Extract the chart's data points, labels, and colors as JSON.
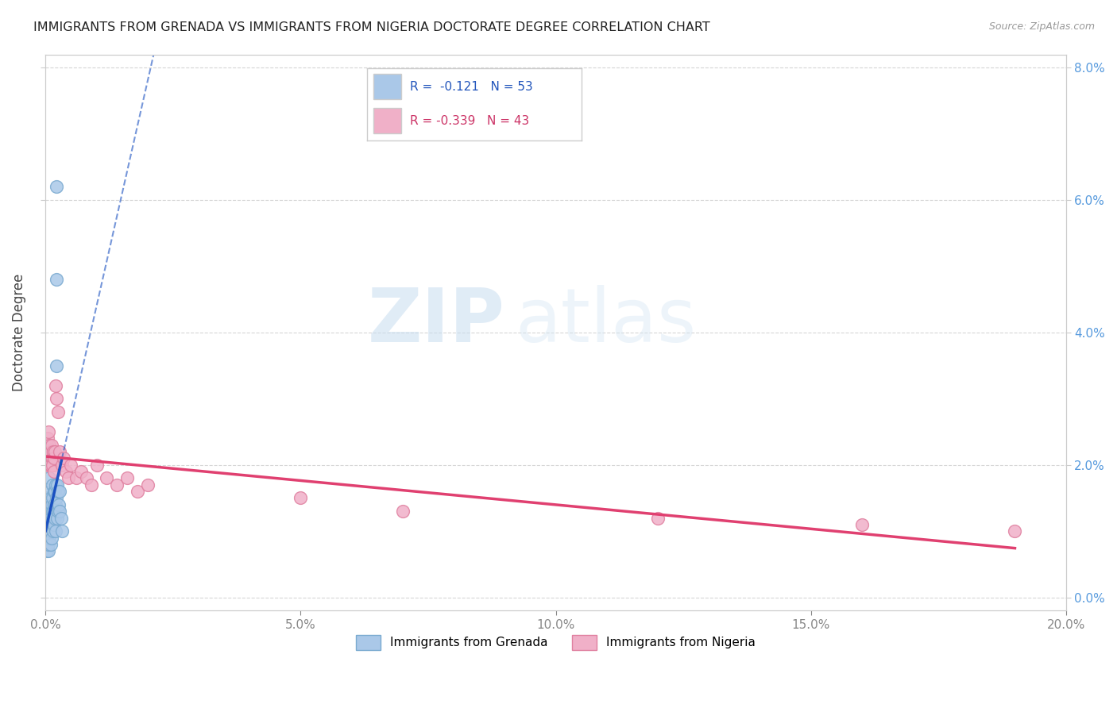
{
  "title": "IMMIGRANTS FROM GRENADA VS IMMIGRANTS FROM NIGERIA DOCTORATE DEGREE CORRELATION CHART",
  "source": "Source: ZipAtlas.com",
  "ylabel": "Doctorate Degree",
  "xlim": [
    0.0,
    0.2
  ],
  "ylim": [
    -0.002,
    0.082
  ],
  "xticks": [
    0.0,
    0.05,
    0.1,
    0.15,
    0.2
  ],
  "yticks": [
    0.0,
    0.02,
    0.04,
    0.06,
    0.08
  ],
  "xticklabels": [
    "0.0%",
    "5.0%",
    "10.0%",
    "15.0%",
    "20.0%"
  ],
  "yticklabels_right": [
    "0.0%",
    "2.0%",
    "4.0%",
    "6.0%",
    "8.0%"
  ],
  "series1_color": "#aac8e8",
  "series1_edge": "#7aaad0",
  "series2_color": "#f0b0c8",
  "series2_edge": "#e080a0",
  "trendline1_color": "#1a50c0",
  "trendline2_color": "#e04070",
  "legend_label1": "Immigrants from Grenada",
  "legend_label2": "Immigrants from Nigeria",
  "R1": -0.121,
  "N1": 53,
  "R2": -0.339,
  "N2": 43,
  "background_color": "#ffffff",
  "grenada_x": [
    0.0,
    0.0001,
    0.0001,
    0.0002,
    0.0002,
    0.0003,
    0.0003,
    0.0004,
    0.0004,
    0.0005,
    0.0005,
    0.0006,
    0.0006,
    0.0007,
    0.0007,
    0.0008,
    0.0008,
    0.0009,
    0.0009,
    0.001,
    0.001,
    0.0011,
    0.0011,
    0.0012,
    0.0012,
    0.0013,
    0.0013,
    0.0014,
    0.0014,
    0.0015,
    0.0015,
    0.0016,
    0.0016,
    0.0017,
    0.0017,
    0.0018,
    0.0018,
    0.0019,
    0.002,
    0.002,
    0.0021,
    0.0021,
    0.0022,
    0.0022,
    0.0023,
    0.0023,
    0.0025,
    0.0025,
    0.0026,
    0.0028,
    0.0028,
    0.003,
    0.0032
  ],
  "grenada_y": [
    0.01,
    0.008,
    0.014,
    0.007,
    0.012,
    0.009,
    0.015,
    0.008,
    0.013,
    0.007,
    0.012,
    0.015,
    0.008,
    0.013,
    0.009,
    0.018,
    0.013,
    0.01,
    0.016,
    0.012,
    0.008,
    0.015,
    0.011,
    0.014,
    0.009,
    0.013,
    0.017,
    0.012,
    0.015,
    0.01,
    0.013,
    0.016,
    0.02,
    0.014,
    0.011,
    0.016,
    0.012,
    0.017,
    0.014,
    0.01,
    0.035,
    0.048,
    0.062,
    0.015,
    0.012,
    0.017,
    0.013,
    0.016,
    0.014,
    0.013,
    0.016,
    0.012,
    0.01
  ],
  "nigeria_x": [
    0.0,
    0.0001,
    0.0002,
    0.0003,
    0.0004,
    0.0005,
    0.0006,
    0.0007,
    0.0008,
    0.0009,
    0.001,
    0.0011,
    0.0012,
    0.0013,
    0.0014,
    0.0015,
    0.0016,
    0.0017,
    0.0018,
    0.002,
    0.0022,
    0.0025,
    0.0028,
    0.0032,
    0.0036,
    0.004,
    0.0045,
    0.005,
    0.006,
    0.007,
    0.008,
    0.009,
    0.01,
    0.012,
    0.014,
    0.016,
    0.018,
    0.02,
    0.05,
    0.07,
    0.12,
    0.16,
    0.19
  ],
  "nigeria_y": [
    0.02,
    0.022,
    0.023,
    0.021,
    0.024,
    0.022,
    0.025,
    0.021,
    0.023,
    0.02,
    0.022,
    0.02,
    0.023,
    0.021,
    0.02,
    0.022,
    0.019,
    0.021,
    0.022,
    0.032,
    0.03,
    0.028,
    0.022,
    0.02,
    0.021,
    0.019,
    0.018,
    0.02,
    0.018,
    0.019,
    0.018,
    0.017,
    0.02,
    0.018,
    0.017,
    0.018,
    0.016,
    0.017,
    0.015,
    0.013,
    0.012,
    0.011,
    0.01
  ]
}
